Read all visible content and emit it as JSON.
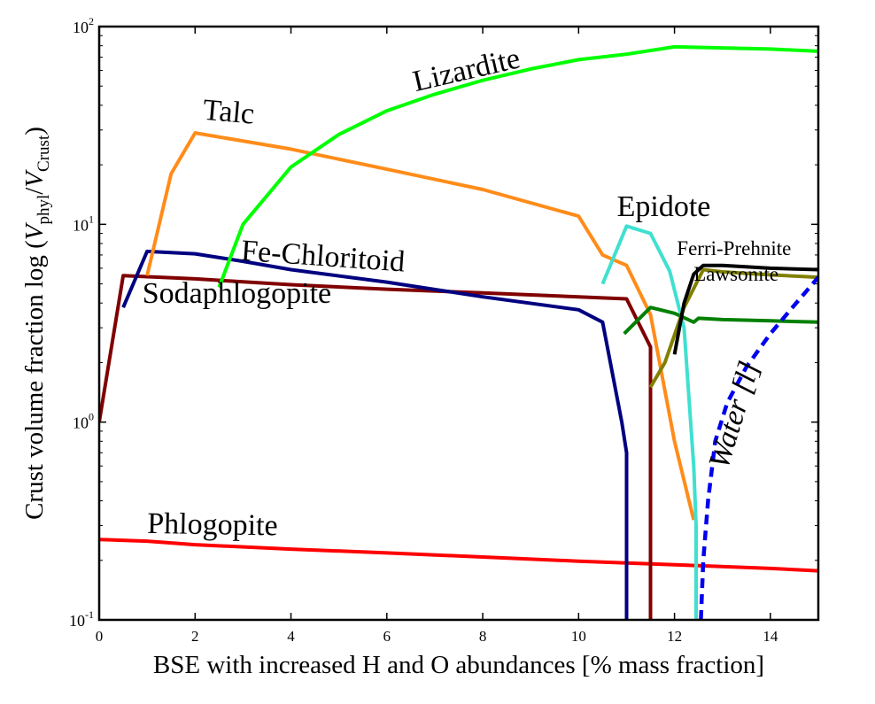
{
  "chart_data": {
    "type": "line",
    "title": "",
    "xlabel": "BSE with increased H and O abundances [% mass fraction]",
    "ylabel": "Crust volume fraction log (V_phyl/V_Crust)",
    "ylabel_parts": {
      "prefix": "Crust volume fraction log (",
      "num_var": "V",
      "num_sub": "phyl",
      "slash": "/",
      "den_var": "V",
      "den_sub": "Crust",
      "suffix": ")"
    },
    "xscale": "linear",
    "yscale": "log",
    "xlim": [
      0,
      15
    ],
    "ylim": [
      0.1,
      100
    ],
    "xticks": [
      0,
      2,
      4,
      6,
      8,
      10,
      12,
      14
    ],
    "xtick_labels": [
      "0",
      "2",
      "4",
      "6",
      "8",
      "10",
      "12",
      "14"
    ],
    "yticks": [
      {
        "value": 0.1,
        "base": "10",
        "exp": "-1"
      },
      {
        "value": 1,
        "base": "10",
        "exp": "0"
      },
      {
        "value": 10,
        "base": "10",
        "exp": "1"
      },
      {
        "value": 100,
        "base": "10",
        "exp": "2"
      }
    ],
    "grid": false,
    "series": [
      {
        "name": "Phlogopite",
        "color": "#ff0000",
        "dash": "solid",
        "x": [
          0,
          1,
          2,
          4,
          6,
          8,
          10,
          12,
          14,
          15
        ],
        "y": [
          0.255,
          0.25,
          0.24,
          0.228,
          0.218,
          0.208,
          0.198,
          0.19,
          0.182,
          0.177
        ]
      },
      {
        "name": "Sodaphlogopite",
        "color": "#800000",
        "dash": "solid",
        "x": [
          0,
          0.5,
          2,
          4,
          6,
          8,
          10,
          11,
          11.5,
          11.5
        ],
        "y": [
          1.0,
          5.5,
          5.3,
          4.95,
          4.7,
          4.5,
          4.3,
          4.2,
          2.4,
          0.1
        ]
      },
      {
        "name": "Fe-Chloritoid",
        "color": "#000080",
        "dash": "solid",
        "x": [
          0.5,
          1,
          2,
          3,
          4,
          6,
          8,
          10,
          10.5,
          10.9,
          11,
          11
        ],
        "y": [
          3.8,
          7.3,
          7.1,
          6.5,
          5.9,
          5.1,
          4.3,
          3.7,
          3.2,
          1.0,
          0.7,
          0.1
        ]
      },
      {
        "name": "Talc",
        "color": "#ff8c1a",
        "dash": "solid",
        "x": [
          1,
          1.5,
          2,
          4,
          6,
          8,
          10,
          10.5,
          11,
          11.5,
          12,
          12.4
        ],
        "y": [
          5.5,
          18,
          29,
          24,
          19,
          15,
          11,
          7.0,
          6.2,
          3.5,
          0.8,
          0.32
        ]
      },
      {
        "name": "Lizardite",
        "color": "#00ff00",
        "dash": "solid",
        "x": [
          2.5,
          3,
          4,
          5,
          6,
          7,
          8,
          9,
          10,
          11,
          12,
          13,
          14,
          15
        ],
        "y": [
          4.8,
          10,
          19.5,
          28.5,
          37.5,
          45.5,
          53.5,
          61,
          68,
          72.5,
          79,
          78,
          77,
          75
        ]
      },
      {
        "name": "Epidote",
        "color": "#40e0d0",
        "dash": "solid",
        "x": [
          10.5,
          11,
          11.5,
          11.9,
          12.2,
          12.4,
          12.45,
          12.45
        ],
        "y": [
          5.0,
          9.8,
          9.0,
          5.8,
          3.0,
          0.6,
          0.3,
          0.1
        ]
      },
      {
        "name": "Lawsonite",
        "color": "#008000",
        "dash": "solid",
        "x": [
          10.95,
          11.5,
          12,
          12.4,
          12.5,
          13,
          14,
          15
        ],
        "y": [
          2.8,
          3.8,
          3.55,
          3.2,
          3.35,
          3.3,
          3.25,
          3.2
        ]
      },
      {
        "name": "Lawsonite-companion",
        "color": "#808000",
        "dash": "solid",
        "x": [
          11.5,
          11.8,
          12.2,
          12.6,
          13,
          14,
          15
        ],
        "y": [
          1.5,
          2.0,
          3.8,
          5.9,
          5.75,
          5.55,
          5.4
        ]
      },
      {
        "name": "Ferri-Prehnite",
        "color": "#000000",
        "dash": "solid",
        "x": [
          12,
          12.2,
          12.4,
          12.6,
          13,
          14,
          15
        ],
        "y": [
          2.2,
          4.0,
          5.6,
          6.2,
          6.2,
          6.0,
          5.9
        ]
      },
      {
        "name": "Water [l]",
        "color": "#0000ee",
        "dash": "dashed",
        "x": [
          12.55,
          12.6,
          12.7,
          12.85,
          13.1,
          13.5,
          14,
          14.5,
          15
        ],
        "y": [
          0.1,
          0.2,
          0.4,
          0.8,
          1.25,
          1.9,
          2.8,
          3.9,
          5.4
        ]
      }
    ],
    "annotations": [
      {
        "text": "Lizardite",
        "series": "Lizardite",
        "x": 6.6,
        "y": 47,
        "rotation": -13,
        "size": 34
      },
      {
        "text": "Talc",
        "series": "Talc",
        "x": 2.15,
        "y": 34,
        "rotation": 5,
        "size": 34
      },
      {
        "text": "Epidote",
        "series": "Epidote",
        "x": 10.8,
        "y": 11.0,
        "rotation": 0,
        "size": 34
      },
      {
        "text": "Ferri-Prehnite",
        "series": "Ferri-Prehnite",
        "x": 12.05,
        "y": 7.0,
        "rotation": 0,
        "size": 23
      },
      {
        "text": "Lawsonite",
        "series": "Lawsonite",
        "x": 12.4,
        "y": 5.2,
        "rotation": 0,
        "size": 23
      },
      {
        "text": "Fe-Chloritoid",
        "series": "Fe-Chloritoid",
        "x": 2.95,
        "y": 6.6,
        "rotation": 4,
        "size": 34
      },
      {
        "text": "Sodaphlogopite",
        "series": "Sodaphlogopite",
        "x": 0.9,
        "y": 4.0,
        "rotation": 0,
        "size": 34
      },
      {
        "text": "Phlogopite",
        "series": "Phlogopite",
        "x": 1.0,
        "y": 0.275,
        "rotation": 1,
        "size": 34
      },
      {
        "text": "Water [l]",
        "series": "Water [l]",
        "x": 13.1,
        "y": 0.57,
        "rotation": -73,
        "size": 34
      }
    ]
  }
}
